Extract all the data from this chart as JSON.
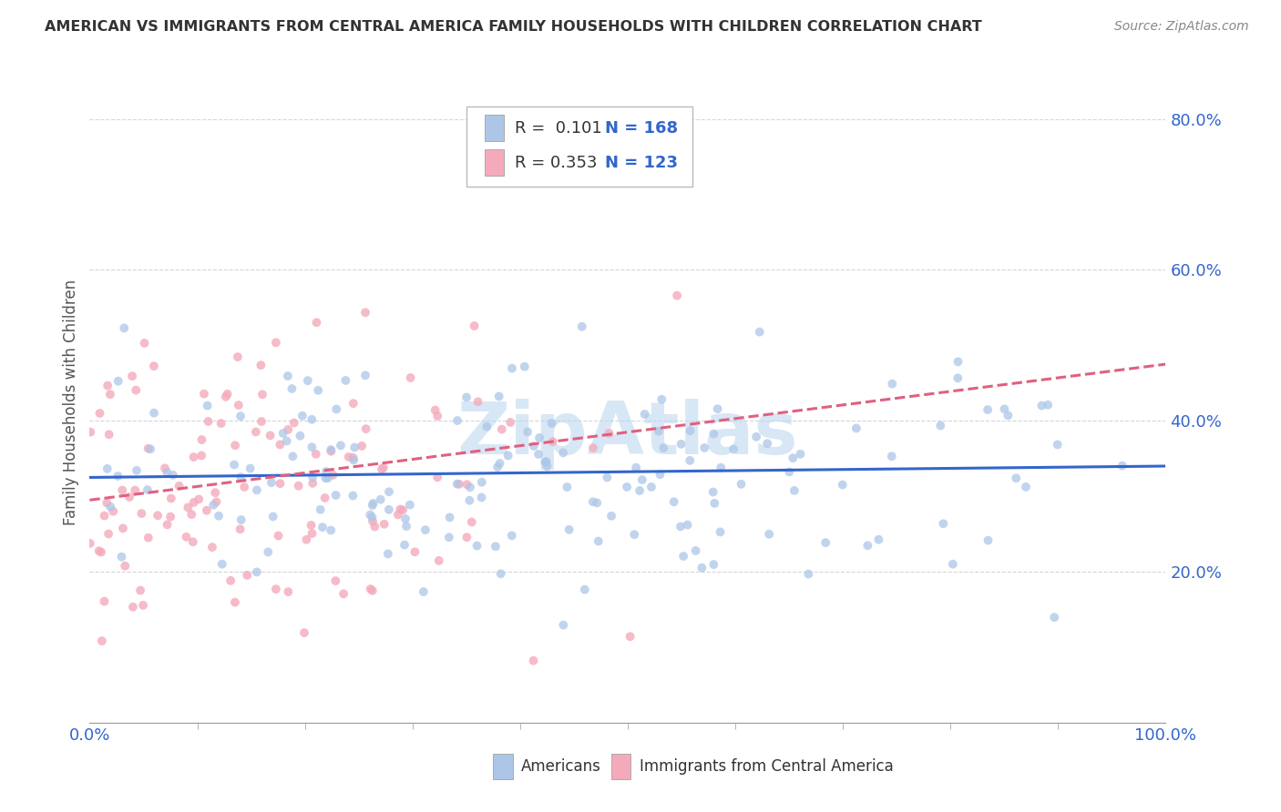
{
  "title": "AMERICAN VS IMMIGRANTS FROM CENTRAL AMERICA FAMILY HOUSEHOLDS WITH CHILDREN CORRELATION CHART",
  "source": "Source: ZipAtlas.com",
  "ylabel": "Family Households with Children",
  "xlim": [
    0.0,
    1.0
  ],
  "ylim": [
    0.0,
    0.85
  ],
  "yticks": [
    0.0,
    0.2,
    0.4,
    0.6,
    0.8
  ],
  "ytick_labels": [
    "",
    "20.0%",
    "40.0%",
    "60.0%",
    "80.0%"
  ],
  "xtick_labels": [
    "0.0%",
    "100.0%"
  ],
  "legend_r1": "R =  0.101",
  "legend_n1": "N = 168",
  "legend_r2": "R = 0.353",
  "legend_n2": "N = 123",
  "color_americans": "#adc6e8",
  "color_immigrants": "#f4aabb",
  "color_line_americans": "#3366cc",
  "color_line_immigrants": "#e06080",
  "color_text_blue": "#3366cc",
  "watermark": "ZipAtlas",
  "legend_label1": "Americans",
  "legend_label2": "Immigrants from Central America",
  "n_americans": 168,
  "n_immigrants": 123,
  "slope_am": 0.015,
  "intercept_am": 0.325,
  "slope_im": 0.18,
  "intercept_im": 0.295
}
